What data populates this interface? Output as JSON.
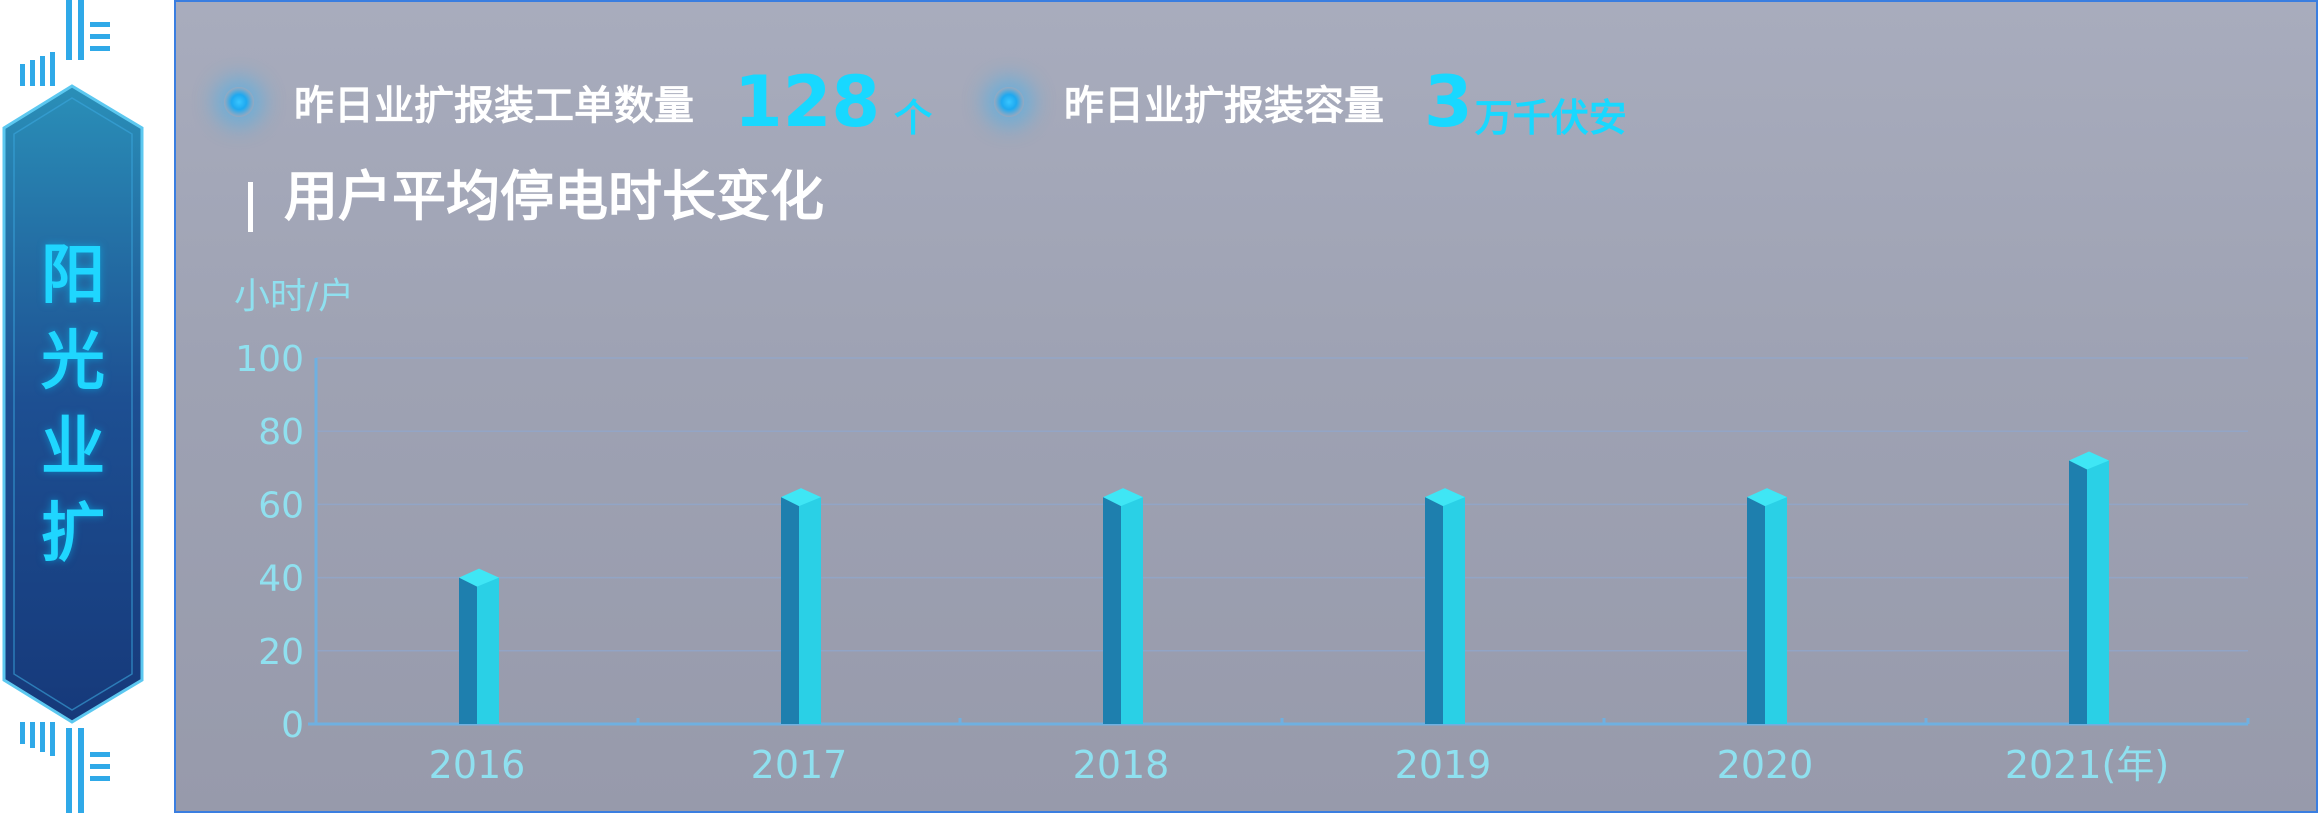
{
  "side_badge": {
    "chars": [
      "阳",
      "光",
      "业",
      "扩"
    ]
  },
  "stats": [
    {
      "label": "昨日业扩报装工单数量",
      "value": "128",
      "unit": "个"
    },
    {
      "label": "昨日业扩报装容量",
      "value": "3",
      "unit": "万千伏安"
    }
  ],
  "section_title": "用户平均停电时长变化",
  "chart_data": {
    "type": "bar",
    "title": "用户平均停电时长变化",
    "ylabel": "小时/户",
    "x_unit_suffix": "(年)",
    "categories": [
      "2016",
      "2017",
      "2018",
      "2019",
      "2020",
      "2021"
    ],
    "x_tick_labels": [
      "2016",
      "2017",
      "2018",
      "2019",
      "2020",
      "2021(年)"
    ],
    "values": [
      40,
      62,
      62,
      62,
      62,
      72
    ],
    "ylim": [
      0,
      100
    ],
    "yticks": [
      0,
      20,
      40,
      60,
      80,
      100
    ],
    "grid": true,
    "legend": "none",
    "colors": {
      "bar_front": "#2ad0e6",
      "bar_side": "#1e7fae",
      "bar_top": "#3fe6f5",
      "axis": "#6fb0e0",
      "tick_text": "#8fe0ef",
      "grid": "#8fa8cf"
    }
  }
}
